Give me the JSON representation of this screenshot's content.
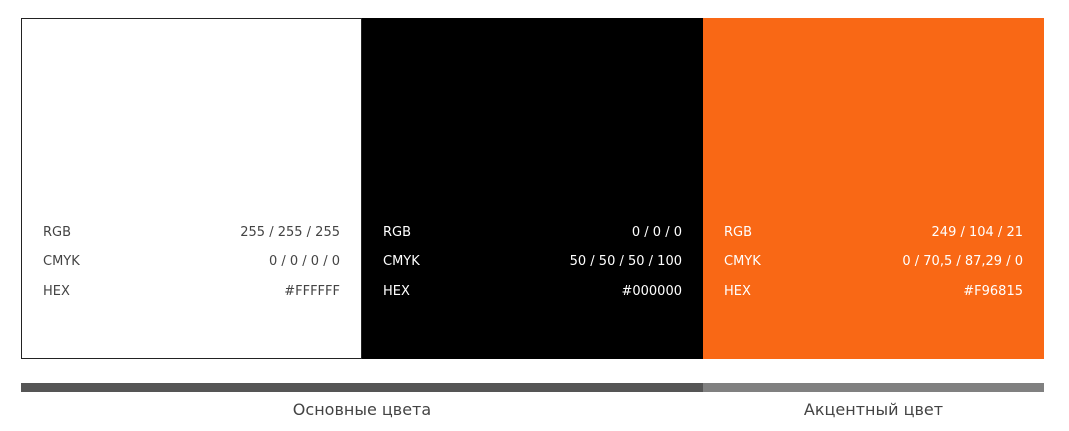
{
  "swatches": [
    {
      "name": "white",
      "color": "#FFFFFF",
      "text_color": "#444444",
      "rows": [
        {
          "label": "RGB",
          "value": "255 / 255 / 255"
        },
        {
          "label": "CMYK",
          "value": "0 / 0 / 0 / 0"
        },
        {
          "label": "HEX",
          "value": "#FFFFFF"
        }
      ]
    },
    {
      "name": "black",
      "color": "#000000",
      "text_color": "#FFFFFF",
      "rows": [
        {
          "label": "RGB",
          "value": "0 / 0 / 0"
        },
        {
          "label": "CMYK",
          "value": "50 / 50 / 50 / 100"
        },
        {
          "label": "HEX",
          "value": "#000000"
        }
      ]
    },
    {
      "name": "orange",
      "color": "#F96815",
      "text_color": "#FFFFFF",
      "rows": [
        {
          "label": "RGB",
          "value": "249 / 104 / 21"
        },
        {
          "label": "CMYK",
          "value": "0 / 70,5 / 87,29 / 0"
        },
        {
          "label": "HEX",
          "value": "#F96815"
        }
      ]
    }
  ],
  "groups": {
    "main": {
      "label": "Основные цвета",
      "color": "#555555"
    },
    "accent": {
      "label": "Акцентный цвет",
      "color": "#808080"
    }
  }
}
